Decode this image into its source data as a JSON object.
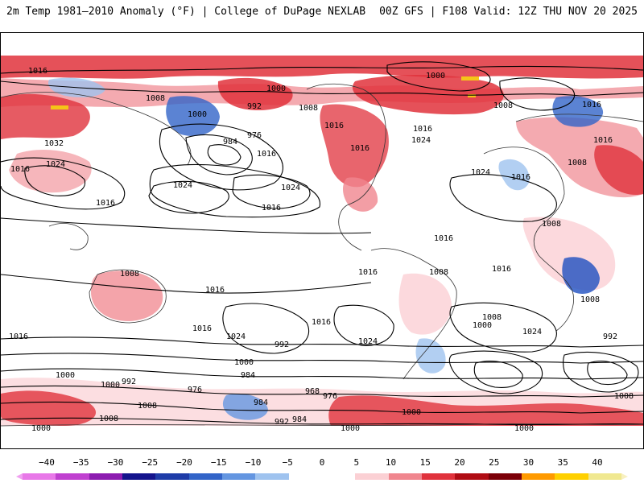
{
  "header": {
    "left_title": "2m Temp 1981–2010 Anomaly (°F) | College of DuPage NEXLAB",
    "right_title": "00Z GFS | F108 Valid: 12Z THU NOV 20 2025"
  },
  "map": {
    "isobar_labels": [
      "1016",
      "1000",
      "1008",
      "1000",
      "992",
      "1008",
      "984",
      "976",
      "1016",
      "1024",
      "1016",
      "1000",
      "1008",
      "1016",
      "1032",
      "1024",
      "1016",
      "1024",
      "1024",
      "1016",
      "1016",
      "1016",
      "1024",
      "1016",
      "1016",
      "1008",
      "1008",
      "1016",
      "1008",
      "1016",
      "1016",
      "1016",
      "1024",
      "1008",
      "1008",
      "992",
      "1024",
      "1016",
      "1024",
      "992",
      "1000",
      "1008",
      "1016",
      "1000",
      "992",
      "976",
      "968",
      "976",
      "984",
      "984",
      "1000",
      "1008",
      "992",
      "1008",
      "984",
      "1000",
      "1000",
      "1000",
      "1000",
      "1008",
      "1016",
      "1016",
      "1000"
    ],
    "colors": {
      "warm_strong": "#d7191c",
      "warm_mid": "#f0616a",
      "warm_light": "#fbc4c8",
      "cold_light": "#c6dbf5",
      "cold_mid": "#6a9be0",
      "cold_strong": "#1e4fc0",
      "yellow": "#f5c518",
      "land_line": "#333333",
      "isobar": "#000000"
    }
  },
  "colorbar": {
    "ticks": [
      "−40",
      "−35",
      "−30",
      "−25",
      "−20",
      "−15",
      "−10",
      "−5",
      "0",
      "5",
      "10",
      "15",
      "20",
      "25",
      "30",
      "35",
      "40"
    ],
    "swatches": [
      "#e878e8",
      "#c040d0",
      "#8c1cb0",
      "#14148c",
      "#1e3ca8",
      "#3264c8",
      "#6496e1",
      "#9fc3ef",
      "#ffffff",
      "#ffffff",
      "#fbd0d4",
      "#f0868e",
      "#e0323c",
      "#b00c14",
      "#7c0008",
      "#ff9a00",
      "#ffd000",
      "#f0e890"
    ],
    "left_cap": "#f0a0f0",
    "right_cap": "#f8f0c0"
  }
}
